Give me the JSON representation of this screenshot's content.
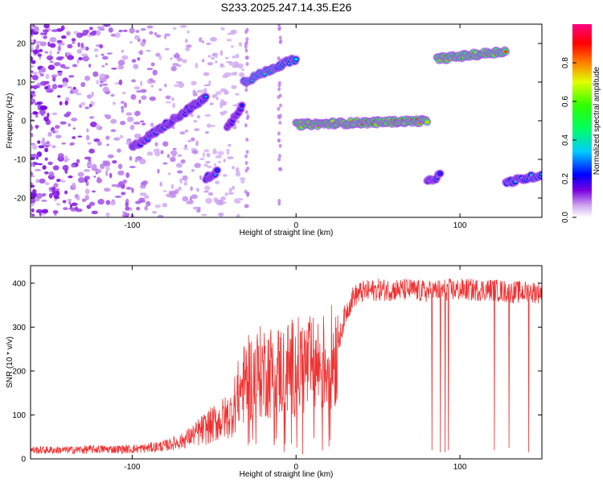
{
  "figure": {
    "title": "S233.2025.247.14.35.E26"
  },
  "chart_data": [
    {
      "type": "heatmap",
      "xlabel": "Height of straight line (km)",
      "ylabel": "Frequency (Hz)",
      "xlim": [
        -162,
        150
      ],
      "ylim": [
        -25,
        25
      ],
      "xticks": [
        -100,
        0,
        100
      ],
      "yticks": [
        -20,
        -10,
        0,
        10,
        20
      ],
      "xtick_labels": [
        "-100",
        "0",
        "100"
      ],
      "ytick_labels": [
        "-20",
        "-10",
        "0",
        "10",
        "20"
      ],
      "colorbar": {
        "label": "Normalized spectral amplitude",
        "range": [
          0,
          1
        ],
        "ticks": [
          0.0,
          0.2,
          0.4,
          0.6,
          0.8
        ],
        "tick_labels": [
          "0.0",
          "0.2",
          "0.4",
          "0.6",
          "0.8"
        ],
        "colormap": "rainbow (white-violet-blue-cyan-green-yellow-red-magenta)"
      },
      "features": [
        {
          "x": [
            -100,
            -55
          ],
          "freq": [
            -7,
            6
          ],
          "amplitude": 0.3
        },
        {
          "x": [
            -55,
            -48
          ],
          "freq": [
            -15,
            -13
          ],
          "amplitude": 0.3
        },
        {
          "x": [
            -42,
            -33
          ],
          "freq": [
            -2,
            4
          ],
          "amplitude": 0.25
        },
        {
          "x": [
            -32,
            -12
          ],
          "freq": [
            10,
            14
          ],
          "amplitude": 0.5
        },
        {
          "x": [
            -12,
            0
          ],
          "freq": [
            14,
            16
          ],
          "amplitude": 0.45
        },
        {
          "x": [
            0,
            80
          ],
          "freq": [
            -1,
            0
          ],
          "amplitude": 0.9
        },
        {
          "x": [
            80,
            88
          ],
          "freq": [
            -16,
            -14
          ],
          "amplitude": 0.3
        },
        {
          "x": [
            86,
            128
          ],
          "freq": [
            16,
            18
          ],
          "amplitude": 0.85
        },
        {
          "x": [
            128,
            150
          ],
          "freq": [
            -16,
            -14
          ],
          "amplitude": 0.4
        }
      ]
    },
    {
      "type": "line",
      "xlabel": "Height of straight line (km)",
      "ylabel": "SNR (10 * v/v)",
      "xlim": [
        -162,
        150
      ],
      "ylim": [
        0,
        440
      ],
      "xticks": [
        -100,
        0,
        100
      ],
      "yticks": [
        0,
        100,
        200,
        300,
        400
      ],
      "xtick_labels": [
        "-100",
        "0",
        "100"
      ],
      "ytick_labels": [
        "0",
        "100",
        "200",
        "300",
        "400"
      ],
      "color": "#ee3333",
      "x": [
        -162,
        -140,
        -120,
        -100,
        -90,
        -80,
        -70,
        -60,
        -50,
        -40,
        -35,
        -30,
        -20,
        -10,
        0,
        10,
        20,
        25,
        30,
        35,
        40,
        50,
        60,
        70,
        80,
        90,
        100,
        110,
        120,
        130,
        140,
        150
      ],
      "y": [
        20,
        20,
        22,
        22,
        25,
        30,
        40,
        60,
        80,
        100,
        150,
        180,
        200,
        200,
        210,
        210,
        220,
        250,
        330,
        370,
        380,
        385,
        385,
        385,
        380,
        385,
        385,
        385,
        385,
        380,
        380,
        380
      ],
      "dropouts": [
        {
          "x": 83,
          "y": 20
        },
        {
          "x": 88,
          "y": 15
        },
        {
          "x": 91,
          "y": 15
        },
        {
          "x": 93,
          "y": 20
        },
        {
          "x": 121,
          "y": 20
        },
        {
          "x": 130,
          "y": 25
        },
        {
          "x": 142,
          "y": 15
        }
      ]
    }
  ]
}
